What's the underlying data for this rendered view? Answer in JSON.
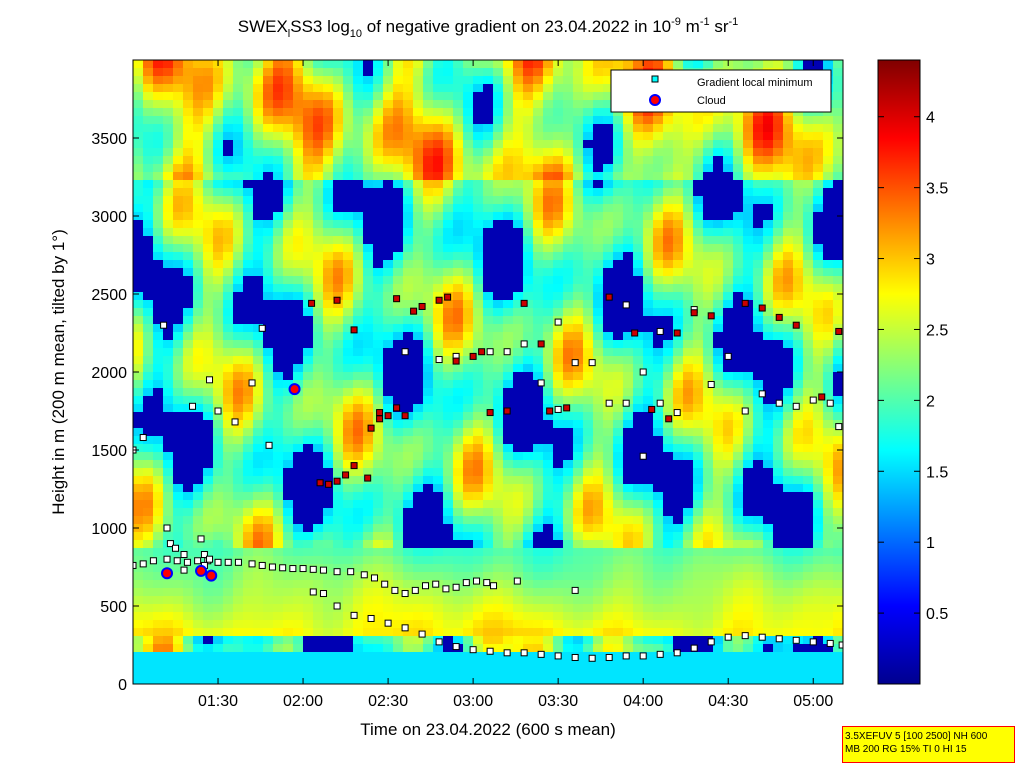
{
  "chart_data": {
    "type": "heatmap",
    "title": {
      "pre": "SWEX",
      "sub1": "l",
      "mid": "SS3 log",
      "sub2": "10",
      "post": " of negative gradient on 23.04.2022 in 10",
      "sup1": "-9",
      "post2": " m",
      "sup2": "-1",
      "post3": " sr",
      "sup3": "-1"
    },
    "xlabel": "Time on 23.04.2022 (600 s mean)",
    "ylabel": "Height in m (200 m mean, tilted by 1°)",
    "x_range_hours": [
      1.0,
      5.175
    ],
    "y_range": [
      0,
      4000
    ],
    "x_ticks": [
      {
        "h": 1.5,
        "label": "01:30"
      },
      {
        "h": 2.0,
        "label": "02:00"
      },
      {
        "h": 2.5,
        "label": "02:30"
      },
      {
        "h": 3.0,
        "label": "03:00"
      },
      {
        "h": 3.5,
        "label": "03:30"
      },
      {
        "h": 4.0,
        "label": "04:00"
      },
      {
        "h": 4.5,
        "label": "04:30"
      },
      {
        "h": 5.0,
        "label": "05:00"
      }
    ],
    "y_ticks": [
      0,
      500,
      1000,
      1500,
      2000,
      2500,
      3000,
      3500
    ],
    "colorbar": {
      "range": [
        0,
        4.4
      ],
      "ticks": [
        "0.5",
        "1",
        "1.5",
        "2",
        "2.5",
        "3",
        "3.5",
        "4"
      ],
      "tick_values": [
        0.5,
        1,
        1.5,
        2,
        2.5,
        3,
        3.5,
        4
      ],
      "colormap": "jet"
    },
    "legend": {
      "position": "top-right",
      "entries": [
        {
          "label": "Gradient local minimum",
          "marker": "square",
          "color": "#00ffff"
        },
        {
          "label": "Cloud",
          "marker": "circle",
          "color": "#ff0000"
        }
      ]
    },
    "series": [
      {
        "name": "Gradient local minimum",
        "marker": "square",
        "points": [
          [
            1.0,
            760
          ],
          [
            1.06,
            770
          ],
          [
            1.12,
            790
          ],
          [
            1.2,
            800
          ],
          [
            1.26,
            790
          ],
          [
            1.32,
            780
          ],
          [
            1.38,
            790
          ],
          [
            1.44,
            790
          ],
          [
            1.5,
            780
          ],
          [
            1.56,
            780
          ],
          [
            1.62,
            780
          ],
          [
            1.7,
            770
          ],
          [
            1.76,
            760
          ],
          [
            1.82,
            750
          ],
          [
            1.88,
            745
          ],
          [
            1.94,
            740
          ],
          [
            2.0,
            740
          ],
          [
            2.06,
            735
          ],
          [
            2.12,
            730
          ],
          [
            2.2,
            720
          ],
          [
            2.28,
            720
          ],
          [
            2.36,
            700
          ],
          [
            2.42,
            680
          ],
          [
            2.48,
            640
          ],
          [
            2.54,
            600
          ],
          [
            2.6,
            580
          ],
          [
            2.66,
            600
          ],
          [
            2.72,
            630
          ],
          [
            2.78,
            640
          ],
          [
            2.84,
            610
          ],
          [
            2.9,
            620
          ],
          [
            2.96,
            650
          ],
          [
            3.02,
            660
          ],
          [
            3.08,
            650
          ],
          [
            3.12,
            630
          ],
          [
            3.26,
            660
          ],
          [
            3.6,
            600
          ],
          [
            2.06,
            590
          ],
          [
            2.12,
            580
          ],
          [
            2.2,
            500
          ],
          [
            2.3,
            440
          ],
          [
            2.4,
            420
          ],
          [
            2.5,
            390
          ],
          [
            2.6,
            360
          ],
          [
            2.7,
            320
          ],
          [
            2.8,
            270
          ],
          [
            2.9,
            240
          ],
          [
            3.0,
            220
          ],
          [
            3.1,
            210
          ],
          [
            3.2,
            200
          ],
          [
            3.3,
            200
          ],
          [
            3.4,
            190
          ],
          [
            3.5,
            180
          ],
          [
            3.6,
            170
          ],
          [
            3.7,
            165
          ],
          [
            3.8,
            170
          ],
          [
            3.9,
            180
          ],
          [
            4.0,
            180
          ],
          [
            4.1,
            190
          ],
          [
            4.2,
            200
          ],
          [
            4.3,
            230
          ],
          [
            4.4,
            270
          ],
          [
            4.5,
            300
          ],
          [
            4.6,
            310
          ],
          [
            4.7,
            300
          ],
          [
            4.8,
            290
          ],
          [
            4.9,
            280
          ],
          [
            5.0,
            270
          ],
          [
            5.1,
            260
          ],
          [
            5.17,
            250
          ],
          [
            1.0,
            1500
          ],
          [
            1.06,
            1580
          ],
          [
            1.18,
            2300
          ],
          [
            1.35,
            1780
          ],
          [
            1.45,
            1950
          ],
          [
            1.5,
            1750
          ],
          [
            1.6,
            1680
          ],
          [
            1.7,
            1930
          ],
          [
            1.76,
            2280
          ],
          [
            1.8,
            1530
          ],
          [
            2.6,
            2130
          ],
          [
            2.8,
            2080
          ],
          [
            2.9,
            2100
          ],
          [
            3.1,
            2130
          ],
          [
            3.2,
            2130
          ],
          [
            3.3,
            2180
          ],
          [
            3.4,
            1930
          ],
          [
            3.5,
            2320
          ],
          [
            3.5,
            1760
          ],
          [
            3.6,
            2060
          ],
          [
            3.7,
            2060
          ],
          [
            3.8,
            1800
          ],
          [
            3.9,
            2430
          ],
          [
            3.9,
            1800
          ],
          [
            4.0,
            1460
          ],
          [
            4.0,
            2000
          ],
          [
            4.1,
            2260
          ],
          [
            4.1,
            1800
          ],
          [
            4.2,
            1740
          ],
          [
            4.3,
            2400
          ],
          [
            4.4,
            1920
          ],
          [
            4.5,
            2100
          ],
          [
            4.6,
            1750
          ],
          [
            4.7,
            1860
          ],
          [
            4.8,
            1800
          ],
          [
            4.9,
            1780
          ],
          [
            5.0,
            1820
          ],
          [
            5.1,
            1800
          ],
          [
            5.15,
            1650
          ],
          [
            1.2,
            1000
          ],
          [
            1.22,
            900
          ],
          [
            1.25,
            870
          ],
          [
            1.3,
            830
          ],
          [
            1.4,
            930
          ],
          [
            1.42,
            830
          ],
          [
            1.45,
            800
          ],
          [
            1.3,
            730
          ],
          [
            1.42,
            760
          ]
        ]
      },
      {
        "name": "Cloud",
        "marker": "circle",
        "points": [
          [
            1.2,
            710
          ],
          [
            1.4,
            725
          ],
          [
            1.46,
            695
          ],
          [
            1.95,
            1890
          ]
        ]
      }
    ],
    "red_markers": [
      [
        2.05,
        2440
      ],
      [
        2.2,
        2460
      ],
      [
        2.3,
        2270
      ],
      [
        2.38,
        1320
      ],
      [
        2.4,
        1640
      ],
      [
        2.45,
        1740
      ],
      [
        2.55,
        2470
      ],
      [
        2.65,
        2390
      ],
      [
        2.7,
        2420
      ],
      [
        2.8,
        2460
      ],
      [
        2.85,
        2480
      ],
      [
        2.9,
        2070
      ],
      [
        3.0,
        2100
      ],
      [
        3.05,
        2130
      ],
      [
        3.1,
        1740
      ],
      [
        3.2,
        1750
      ],
      [
        3.3,
        2440
      ],
      [
        3.4,
        2180
      ],
      [
        3.45,
        1750
      ],
      [
        3.55,
        1770
      ],
      [
        3.8,
        2480
      ],
      [
        3.95,
        2250
      ],
      [
        4.05,
        1760
      ],
      [
        4.15,
        1700
      ],
      [
        4.2,
        2250
      ],
      [
        4.3,
        2380
      ],
      [
        4.4,
        2360
      ],
      [
        4.6,
        2440
      ],
      [
        4.7,
        2410
      ],
      [
        4.8,
        2350
      ],
      [
        4.9,
        2300
      ],
      [
        5.05,
        1840
      ],
      [
        5.15,
        2260
      ],
      [
        2.1,
        1290
      ],
      [
        2.15,
        1280
      ],
      [
        2.2,
        1300
      ],
      [
        2.25,
        1340
      ],
      [
        2.3,
        1400
      ],
      [
        2.45,
        1700
      ],
      [
        2.5,
        1720
      ],
      [
        2.55,
        1770
      ],
      [
        2.6,
        1720
      ]
    ]
  },
  "info_box": {
    "line1": "3.5XEFUV 5 [100 2500] NH 600",
    "line2": "MB 200 RG 15% TI 0 HI 15"
  }
}
